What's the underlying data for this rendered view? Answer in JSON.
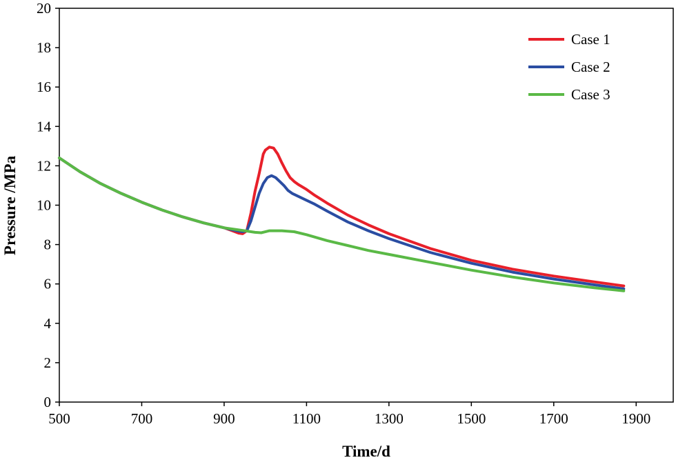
{
  "chart_data": {
    "type": "line",
    "title": "",
    "xlabel": "Time/d",
    "ylabel": "Pressure /MPa",
    "xlim": [
      500,
      1990
    ],
    "ylim": [
      0,
      20
    ],
    "xticks": [
      500,
      700,
      900,
      1100,
      1300,
      1500,
      1700,
      1900
    ],
    "yticks": [
      0,
      2,
      4,
      6,
      8,
      10,
      12,
      14,
      16,
      18,
      20
    ],
    "grid": false,
    "legend_position": "top-right",
    "series": [
      {
        "name": "Case 1",
        "color": "#e8202a",
        "x": [
          500,
          550,
          600,
          650,
          700,
          750,
          800,
          850,
          900,
          920,
          935,
          945,
          955,
          965,
          975,
          985,
          995,
          1000,
          1010,
          1020,
          1030,
          1040,
          1050,
          1060,
          1070,
          1080,
          1100,
          1120,
          1150,
          1200,
          1250,
          1300,
          1400,
          1500,
          1600,
          1700,
          1800,
          1870
        ],
        "y": [
          12.4,
          11.7,
          11.1,
          10.6,
          10.15,
          9.75,
          9.4,
          9.1,
          8.85,
          8.7,
          8.58,
          8.55,
          8.7,
          9.6,
          10.7,
          11.6,
          12.6,
          12.8,
          12.95,
          12.9,
          12.6,
          12.15,
          11.75,
          11.4,
          11.2,
          11.05,
          10.8,
          10.5,
          10.1,
          9.5,
          9.0,
          8.55,
          7.8,
          7.2,
          6.75,
          6.4,
          6.1,
          5.9
        ]
      },
      {
        "name": "Case 2",
        "color": "#2a4da2",
        "x": [
          500,
          550,
          600,
          650,
          700,
          750,
          800,
          850,
          900,
          920,
          935,
          945,
          955,
          965,
          975,
          985,
          995,
          1005,
          1015,
          1025,
          1035,
          1045,
          1055,
          1065,
          1080,
          1100,
          1120,
          1150,
          1200,
          1250,
          1300,
          1400,
          1500,
          1600,
          1700,
          1800,
          1870
        ],
        "y": [
          12.4,
          11.7,
          11.1,
          10.6,
          10.15,
          9.75,
          9.4,
          9.1,
          8.85,
          8.75,
          8.68,
          8.65,
          8.7,
          9.2,
          9.9,
          10.6,
          11.1,
          11.4,
          11.5,
          11.4,
          11.2,
          11.0,
          10.75,
          10.6,
          10.45,
          10.25,
          10.05,
          9.7,
          9.15,
          8.7,
          8.3,
          7.6,
          7.05,
          6.6,
          6.25,
          5.95,
          5.75
        ]
      },
      {
        "name": "Case 3",
        "color": "#5ab946",
        "x": [
          500,
          550,
          600,
          650,
          700,
          750,
          800,
          850,
          900,
          950,
          975,
          990,
          1010,
          1040,
          1070,
          1100,
          1150,
          1200,
          1250,
          1300,
          1400,
          1500,
          1600,
          1700,
          1800,
          1870
        ],
        "y": [
          12.4,
          11.7,
          11.1,
          10.6,
          10.15,
          9.75,
          9.4,
          9.1,
          8.85,
          8.7,
          8.62,
          8.6,
          8.7,
          8.7,
          8.65,
          8.5,
          8.2,
          7.95,
          7.7,
          7.5,
          7.1,
          6.7,
          6.35,
          6.05,
          5.8,
          5.65
        ]
      }
    ]
  }
}
